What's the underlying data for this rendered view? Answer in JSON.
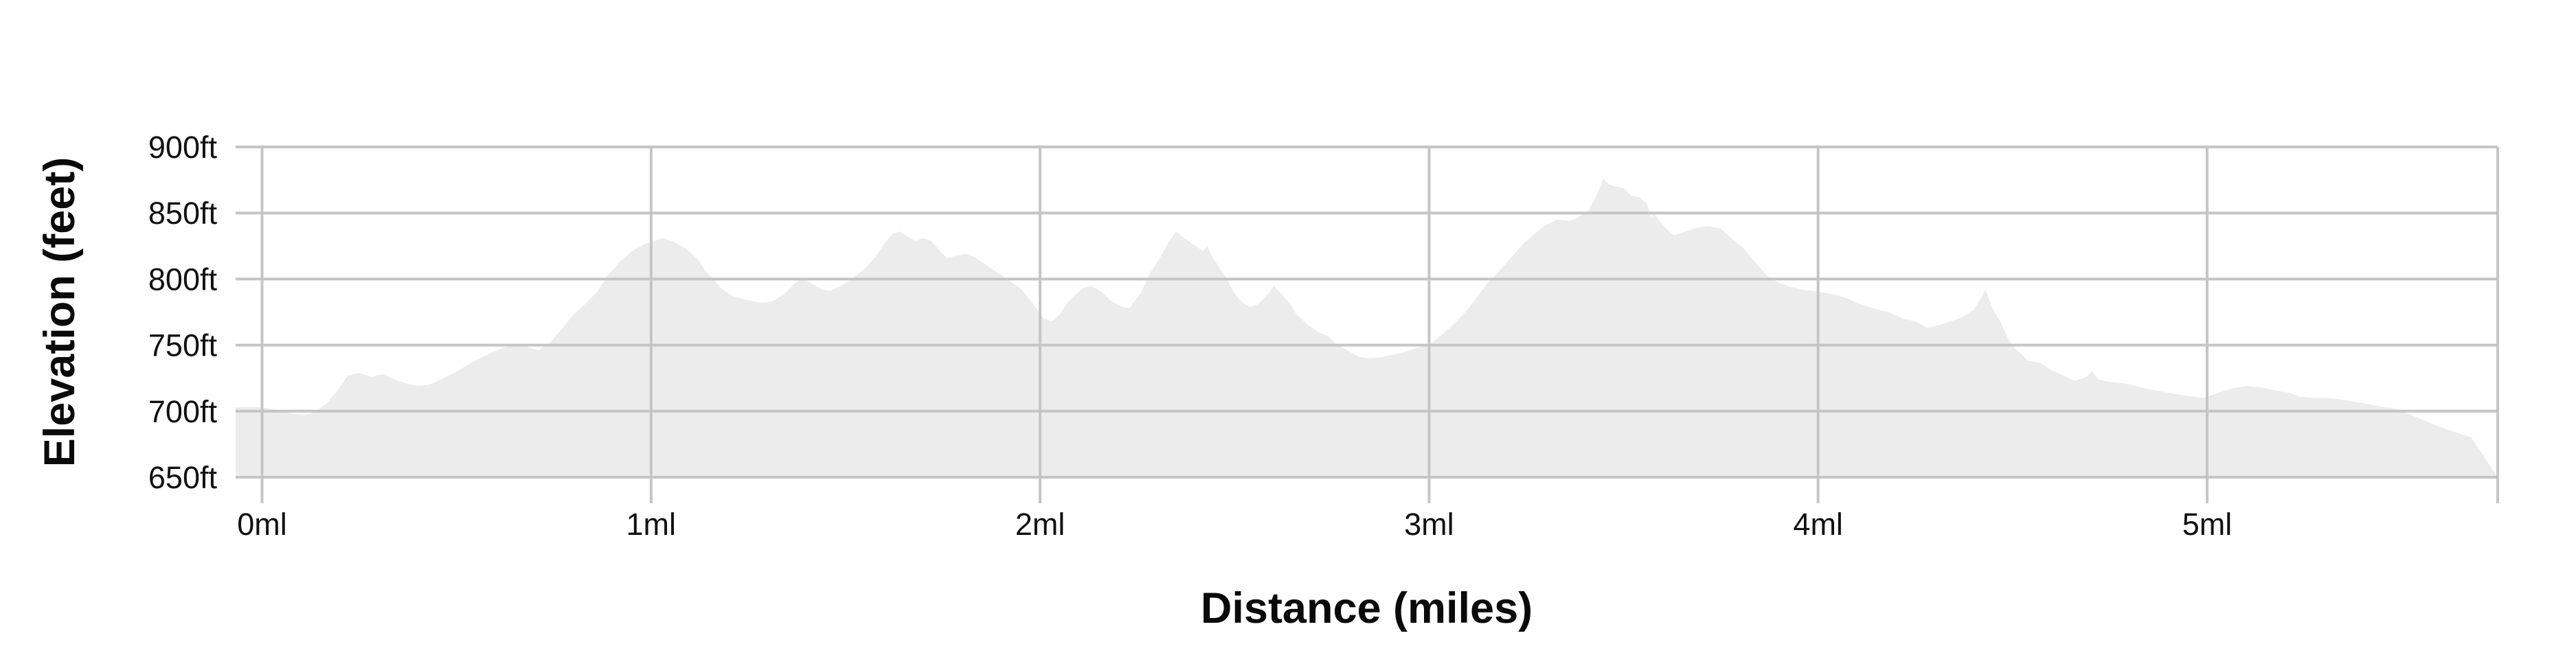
{
  "chart_data": {
    "type": "area",
    "title": "",
    "xlabel": "Distance (miles)",
    "ylabel": "Elevation (feet)",
    "xlim": [
      -0.068,
      5.747
    ],
    "ylim": [
      650,
      900
    ],
    "grid": true,
    "legend": "none",
    "x_ticks": {
      "values": [
        0,
        1,
        2,
        3,
        4,
        5
      ],
      "labels": [
        "0ml",
        "1ml",
        "2ml",
        "3ml",
        "4ml",
        "5ml"
      ]
    },
    "y_ticks": {
      "values": [
        650,
        700,
        750,
        800,
        850,
        900
      ],
      "labels": [
        "650ft",
        "700ft",
        "750ft",
        "800ft",
        "850ft",
        "900ft"
      ]
    },
    "colors": {
      "area_fill": "#ececec",
      "gridline": "#c5c5c5",
      "text": "#111111",
      "background": "#ffffff"
    },
    "series": [
      {
        "name": "elevation-profile",
        "x": [
          -0.068,
          0,
          0.05,
          0.08,
          0.11,
          0.14,
          0.17,
          0.2,
          0.22,
          0.25,
          0.28,
          0.31,
          0.34,
          0.37,
          0.4,
          0.43,
          0.46,
          0.5,
          0.54,
          0.58,
          0.62,
          0.65,
          0.68,
          0.71,
          0.74,
          0.77,
          0.8,
          0.83,
          0.86,
          0.89,
          0.92,
          0.95,
          0.98,
          1.01,
          1.03,
          1.06,
          1.09,
          1.12,
          1.14,
          1.16,
          1.18,
          1.21,
          1.25,
          1.28,
          1.31,
          1.34,
          1.37,
          1.39,
          1.41,
          1.44,
          1.46,
          1.49,
          1.52,
          1.55,
          1.58,
          1.6,
          1.62,
          1.64,
          1.66,
          1.68,
          1.7,
          1.72,
          1.74,
          1.76,
          1.79,
          1.81,
          1.83,
          1.86,
          1.89,
          1.92,
          1.95,
          1.98,
          2.01,
          2.03,
          2.05,
          2.07,
          2.09,
          2.11,
          2.13,
          2.16,
          2.18,
          2.21,
          2.23,
          2.26,
          2.28,
          2.31,
          2.33,
          2.35,
          2.37,
          2.39,
          2.41,
          2.42,
          2.43,
          2.44,
          2.46,
          2.48,
          2.5,
          2.52,
          2.54,
          2.56,
          2.59,
          2.6,
          2.62,
          2.64,
          2.66,
          2.69,
          2.72,
          2.74,
          2.76,
          2.79,
          2.82,
          2.85,
          2.88,
          2.91,
          2.94,
          2.97,
          3.0,
          3.03,
          3.06,
          3.09,
          3.12,
          3.15,
          3.18,
          3.21,
          3.24,
          3.27,
          3.3,
          3.33,
          3.36,
          3.38,
          3.41,
          3.43,
          3.448,
          3.46,
          3.48,
          3.5,
          3.52,
          3.54,
          3.56,
          3.565,
          3.572,
          3.576,
          3.59,
          3.61,
          3.63,
          3.66,
          3.69,
          3.72,
          3.75,
          3.78,
          3.81,
          3.84,
          3.87,
          3.9,
          3.93,
          3.96,
          3.99,
          4.03,
          4.07,
          4.1,
          4.14,
          4.18,
          4.22,
          4.25,
          4.28,
          4.31,
          4.34,
          4.37,
          4.4,
          4.42,
          4.43,
          4.44,
          4.45,
          4.47,
          4.485,
          4.5,
          4.52,
          4.54,
          4.57,
          4.6,
          4.63,
          4.66,
          4.69,
          4.705,
          4.72,
          4.75,
          4.79,
          4.83,
          4.86,
          4.9,
          4.94,
          4.99,
          5.03,
          5.06,
          5.1,
          5.14,
          5.17,
          5.21,
          5.24,
          5.28,
          5.32,
          5.36,
          5.4,
          5.44,
          5.48,
          5.51,
          5.55,
          5.59,
          5.63,
          5.679
        ],
        "y": [
          703,
          703,
          700,
          698,
          697,
          700,
          707,
          718,
          727,
          729,
          726,
          728,
          724,
          721,
          719,
          720,
          724,
          730,
          737,
          743,
          748,
          750,
          749,
          746,
          752,
          762,
          773,
          781,
          790,
          803,
          813,
          821,
          826,
          829,
          831,
          828,
          823,
          815,
          806,
          800,
          793,
          787,
          784,
          782,
          783,
          788,
          797,
          801,
          797,
          792,
          791,
          795,
          801,
          808,
          818,
          827,
          834,
          836,
          832,
          829,
          831,
          829,
          822,
          816,
          818,
          819,
          817,
          811,
          805,
          799,
          793,
          782,
          770,
          768,
          773,
          782,
          788,
          793,
          795,
          790,
          784,
          779,
          778,
          790,
          803,
          817,
          828,
          836,
          831,
          827,
          823,
          821,
          825,
          818,
          809,
          800,
          789,
          782,
          779,
          781,
          790,
          795,
          789,
          782,
          773,
          765,
          759,
          757,
          751,
          746,
          741,
          740,
          741,
          743,
          745,
          748,
          750,
          757,
          765,
          774,
          785,
          797,
          806,
          816,
          826,
          834,
          841,
          845,
          844,
          846,
          852,
          863,
          876,
          872,
          870,
          869,
          863,
          862,
          857,
          852,
          846,
          851,
          845,
          838,
          833,
          836,
          839,
          840,
          838,
          830,
          823,
          812,
          802,
          797,
          794,
          792,
          791,
          789,
          786,
          782,
          778,
          775,
          770,
          768,
          763,
          765,
          768,
          771,
          777,
          786,
          792,
          784,
          777,
          767,
          757,
          749,
          744,
          738,
          737,
          731,
          727,
          723,
          726,
          730,
          724,
          722,
          721,
          718,
          716,
          714,
          712,
          710,
          714,
          717,
          719,
          718,
          716,
          714,
          711,
          710,
          710,
          708,
          706,
          704,
          702,
          699,
          694,
          689,
          685,
          680
        ]
      }
    ]
  }
}
